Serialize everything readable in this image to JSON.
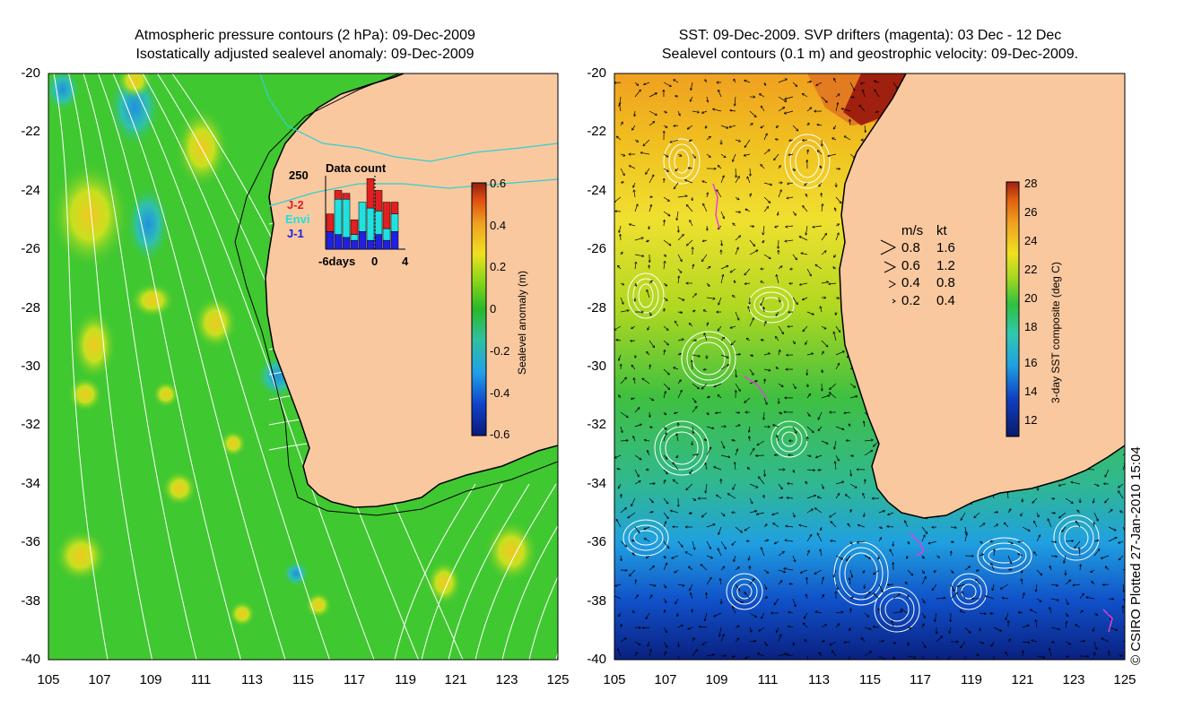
{
  "left_panel": {
    "title_line1": "Atmospheric pressure contours (2 hPa): 09-Dec-2009",
    "title_line2": "Isostatically adjusted sealevel anomaly: 09-Dec-2009",
    "y_ticks": [
      "-20",
      "-22",
      "-24",
      "-26",
      "-28",
      "-30",
      "-32",
      "-34",
      "-36",
      "-38",
      "-40"
    ],
    "x_ticks": [
      "105",
      "107",
      "109",
      "111",
      "113",
      "115",
      "117",
      "119",
      "121",
      "123",
      "125"
    ],
    "colorbar": {
      "label": "Sealevel anomaly (m)",
      "ticks": [
        "0.6",
        "0.4",
        "0.2",
        "0",
        "-0.2",
        "-0.4",
        "-0.6"
      ],
      "colors": [
        "#0a1a7a",
        "#1040c8",
        "#20a0e8",
        "#30c0a0",
        "#28b828",
        "#90d818",
        "#f0e020",
        "#f0a020",
        "#e05010",
        "#902010"
      ]
    },
    "inset": {
      "title": "Data count",
      "y_max_label": "250",
      "x_labels": [
        "-6days",
        "0",
        "4"
      ],
      "legend": [
        {
          "label": "J-2",
          "color": "#e02020"
        },
        {
          "label": "Envi",
          "color": "#20e0e0"
        },
        {
          "label": "J-1",
          "color": "#2020e0"
        }
      ],
      "bars": [
        {
          "J1": 60,
          "Envi": 0,
          "J2": 60
        },
        {
          "J1": 50,
          "Envi": 120,
          "J2": 30
        },
        {
          "J1": 40,
          "Envi": 130,
          "J2": 20
        },
        {
          "J1": 30,
          "Envi": 20,
          "J2": 50
        },
        {
          "J1": 60,
          "Envi": 100,
          "J2": 0
        },
        {
          "J1": 30,
          "Envi": 110,
          "J2": 100
        },
        {
          "J1": 50,
          "Envi": 80,
          "J2": 70
        },
        {
          "J1": 30,
          "Envi": 40,
          "J2": 90
        },
        {
          "J1": 60,
          "Envi": 60,
          "J2": 40
        }
      ]
    }
  },
  "right_panel": {
    "title_line1": "SST: 09-Dec-2009. SVP drifters (magenta): 03 Dec - 12 Dec",
    "title_line2": "Sealevel contours (0.1 m) and geostrophic velocity: 09-Dec-2009.",
    "y_ticks": [
      "-20",
      "-22",
      "-24",
      "-26",
      "-28",
      "-30",
      "-32",
      "-34",
      "-36",
      "-38",
      "-40"
    ],
    "x_ticks": [
      "105",
      "107",
      "109",
      "111",
      "113",
      "115",
      "117",
      "119",
      "121",
      "123",
      "125"
    ],
    "colorbar": {
      "label": "3-day SST composite (deg C)",
      "ticks": [
        "28",
        "26",
        "24",
        "22",
        "20",
        "18",
        "16",
        "14",
        "12"
      ],
      "colors": [
        "#0a1a6a",
        "#1040c0",
        "#20a0e0",
        "#30c8b0",
        "#30c040",
        "#a0d820",
        "#f0e020",
        "#f0a020",
        "#e06010",
        "#a02010"
      ]
    },
    "velocity_legend": {
      "header_ms": "m/s",
      "header_kt": "kt",
      "rows": [
        {
          "ms": "0.8",
          "kt": "1.6"
        },
        {
          "ms": "0.6",
          "kt": "1.2"
        },
        {
          "ms": "0.4",
          "kt": "0.8"
        },
        {
          "ms": "0.2",
          "kt": "0.4"
        }
      ]
    }
  },
  "credit": "© CSIRO Plotted 27-Jan-2010 15:04",
  "colors": {
    "land": "#f9c89f",
    "coast": "#000000",
    "contour": "#ffffff",
    "bathy": "#000000",
    "cyan_contour": "#30d0d0",
    "drifter": "#e040e0"
  }
}
